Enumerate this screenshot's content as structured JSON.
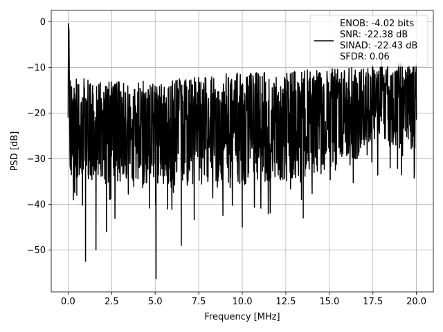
{
  "chart_data": {
    "type": "line",
    "xlabel": "Frequency [MHz]",
    "ylabel": "PSD [dB]",
    "xlim": [
      -0.97,
      20.97
    ],
    "ylim": [
      -59.2,
      2.5
    ],
    "x_ticks": [
      0.0,
      2.5,
      5.0,
      7.5,
      10.0,
      12.5,
      15.0,
      17.5,
      20.0
    ],
    "x_tick_labels": [
      "0.0",
      "2.5",
      "5.0",
      "7.5",
      "10.0",
      "12.5",
      "15.0",
      "17.5",
      "20.0"
    ],
    "y_ticks": [
      0,
      -10,
      -20,
      -30,
      -40,
      -50
    ],
    "y_tick_labels": [
      "0",
      "−10",
      "−20",
      "−30",
      "−40",
      "−50"
    ],
    "grid": true,
    "legend_position": "top-right",
    "series": [
      {
        "name": "ENOB: -4.02 bits\nSNR: -22.38 dB\nSINAD: -22.43 dB\nSFDR: 0.06",
        "color": "#000000",
        "description_points": {
          "x": [
            0.0,
            0.02,
            0.05,
            0.1,
            0.3,
            0.5,
            1.0,
            1.6,
            2.2,
            5.05,
            6.5,
            10.0,
            13.5,
            17.0,
            17.5,
            18.0,
            19.5,
            20.0
          ],
          "y": [
            -21.0,
            -0.4,
            -2.0,
            -28.0,
            -39.0,
            -38.0,
            -52.5,
            -50.0,
            -46.0,
            -56.3,
            -49.0,
            -45.0,
            -43.0,
            -27.0,
            -10.0,
            -8.0,
            -10.0,
            -21.5
          ]
        },
        "envelope": {
          "x": [
            0.0,
            2.5,
            5.0,
            7.5,
            10.0,
            12.5,
            15.0,
            16.5,
            17.0,
            17.5,
            18.0,
            18.5,
            19.0,
            19.5,
            20.0
          ],
          "upper": [
            -12.0,
            -13.0,
            -13.0,
            -12.0,
            -11.0,
            -11.0,
            -10.0,
            -10.0,
            -10.0,
            -9.0,
            -9.0,
            -9.0,
            -9.0,
            -9.0,
            -9.0
          ],
          "median": [
            -23.0,
            -23.0,
            -22.0,
            -22.0,
            -22.0,
            -21.0,
            -21.0,
            -20.0,
            -17.0,
            -16.0,
            -16.0,
            -16.0,
            -17.0,
            -17.0,
            -18.0
          ],
          "lower": [
            -35.0,
            -36.0,
            -36.0,
            -36.0,
            -35.0,
            -35.0,
            -33.0,
            -31.0,
            -27.0,
            -26.0,
            -26.0,
            -27.0,
            -28.0,
            -28.0,
            -29.0
          ]
        }
      }
    ]
  },
  "legend": {
    "line1": "ENOB: -4.02 bits",
    "line2": "SNR: -22.38 dB",
    "line3": "SINAD: -22.43 dB",
    "line4": "SFDR: 0.06"
  }
}
